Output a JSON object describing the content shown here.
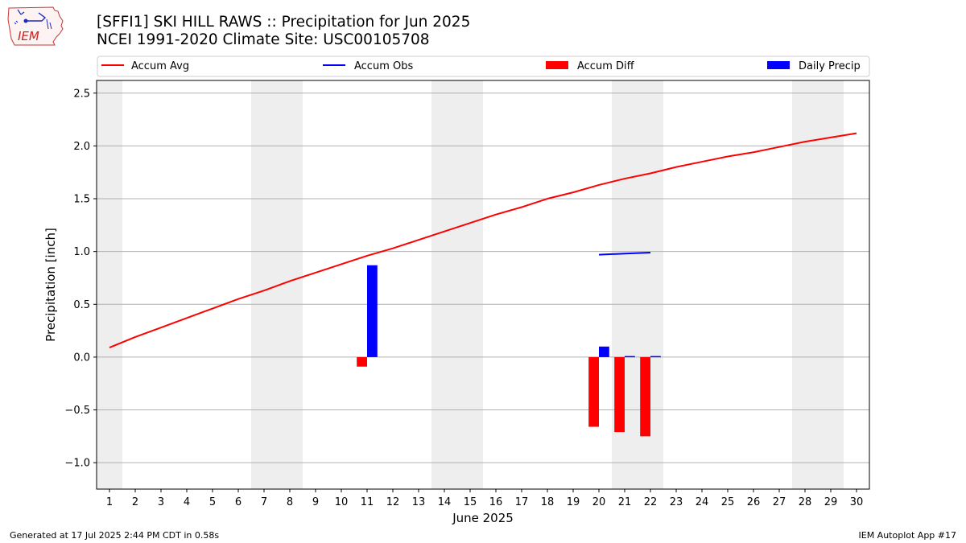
{
  "header": {
    "title_line1": "[SFFI1] SKI HILL RAWS :: Precipitation for Jun 2025",
    "title_line2": "NCEI 1991-2020 Climate Site: USC00105708",
    "logo_text": "IEM"
  },
  "footer": {
    "generated": "Generated at 17 Jul 2025 2:44 PM CDT in 0.58s",
    "app": "IEM Autoplot App #17"
  },
  "colors": {
    "accum_avg": "#ff0000",
    "accum_obs": "#0000ff",
    "accum_diff": "#ff0000",
    "daily_precip": "#0000ff",
    "weekend_shade": "#eeeeee",
    "grid": "#b0b0b0"
  },
  "chart_data": {
    "type": "line",
    "xlabel": "June 2025",
    "ylabel": "Precipitation [inch]",
    "xlim": [
      0.5,
      30.5
    ],
    "ylim": [
      -1.25,
      2.62
    ],
    "x_ticks": [
      "1",
      "2",
      "3",
      "4",
      "5",
      "6",
      "7",
      "8",
      "9",
      "10",
      "11",
      "12",
      "13",
      "14",
      "15",
      "16",
      "17",
      "18",
      "19",
      "20",
      "21",
      "22",
      "23",
      "24",
      "25",
      "26",
      "27",
      "28",
      "29",
      "30"
    ],
    "y_ticks": [
      "−1.0",
      "−0.5",
      "0.0",
      "0.5",
      "1.0",
      "1.5",
      "2.0",
      "2.5"
    ],
    "y_tick_values": [
      -1.0,
      -0.5,
      0.0,
      0.5,
      1.0,
      1.5,
      2.0,
      2.5
    ],
    "grid": "horizontal",
    "legend_position": "top",
    "shaded_days": [
      1,
      7,
      8,
      14,
      15,
      21,
      22,
      28,
      29
    ],
    "legend": [
      "Accum Avg",
      "Accum Obs",
      "Accum Diff",
      "Daily Precip"
    ],
    "accum_avg": {
      "days": [
        1,
        2,
        3,
        4,
        5,
        6,
        7,
        8,
        9,
        10,
        11,
        12,
        13,
        14,
        15,
        16,
        17,
        18,
        19,
        20,
        21,
        22,
        23,
        24,
        25,
        26,
        27,
        28,
        29,
        30
      ],
      "values": [
        0.09,
        0.19,
        0.28,
        0.37,
        0.46,
        0.55,
        0.63,
        0.72,
        0.8,
        0.88,
        0.96,
        1.03,
        1.11,
        1.19,
        1.27,
        1.35,
        1.42,
        1.5,
        1.56,
        1.63,
        1.69,
        1.74,
        1.8,
        1.85,
        1.9,
        1.94,
        1.99,
        2.04,
        2.08,
        2.12
      ]
    },
    "accum_obs": {
      "days": [
        20,
        21,
        22
      ],
      "values": [
        0.97,
        0.98,
        0.99
      ]
    },
    "accum_diff": {
      "days": [
        11,
        20,
        21,
        22
      ],
      "values": [
        -0.09,
        -0.66,
        -0.71,
        -0.75
      ]
    },
    "daily_precip": {
      "days": [
        11,
        20,
        21,
        22
      ],
      "values": [
        0.87,
        0.1,
        0.01,
        0.01
      ]
    }
  }
}
